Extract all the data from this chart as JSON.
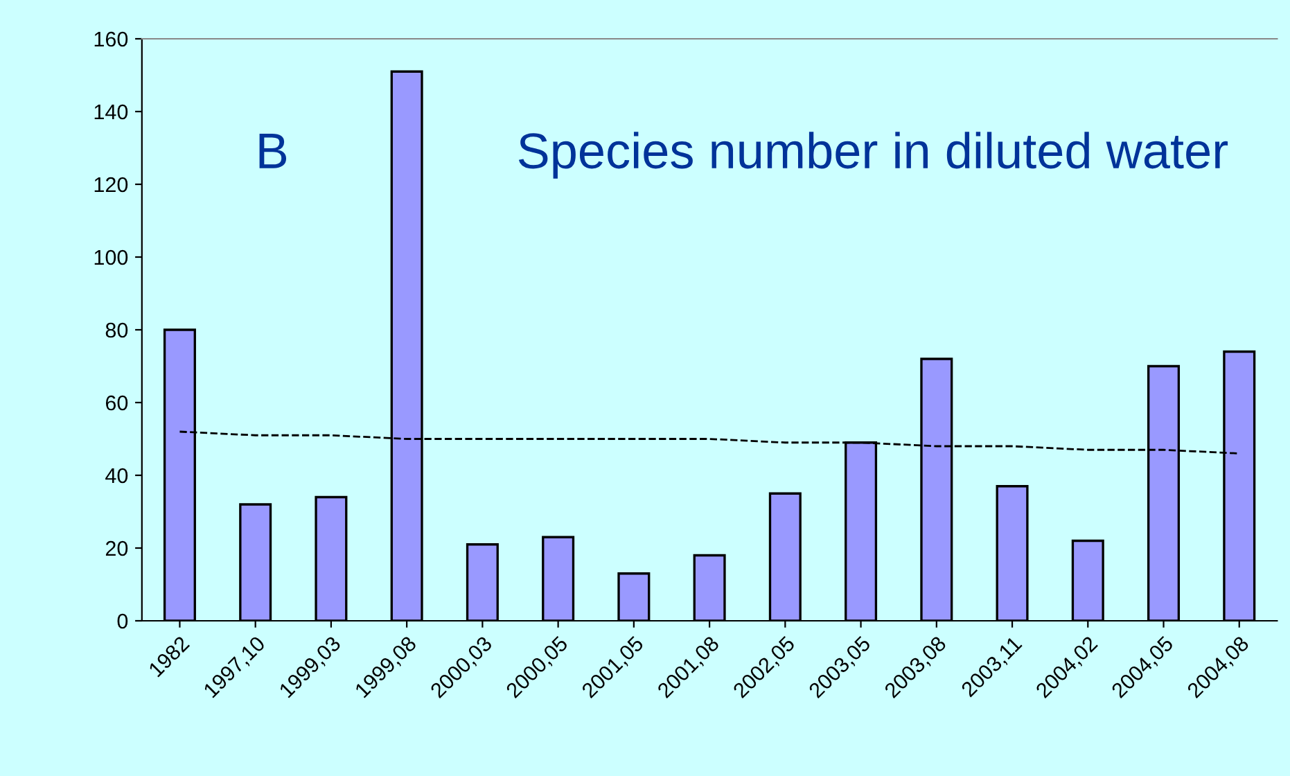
{
  "chart_data": {
    "type": "bar",
    "categories": [
      "1982",
      "1997,10",
      "1999,03",
      "1999,08",
      "2000,03",
      "2000,05",
      "2001,05",
      "2001,08",
      "2002,05",
      "2003,05",
      "2003,08",
      "2003,11",
      "2004,02",
      "2004,05",
      "2004,08"
    ],
    "series": [
      {
        "color": "#9999ff",
        "values": [
          80,
          32,
          34,
          151,
          21,
          23,
          13,
          18,
          35,
          49,
          72,
          37,
          22,
          70,
          74
        ]
      },
      {
        "type": "line",
        "color": "#000000",
        "line_style": "dashed",
        "values": [
          52,
          51,
          51,
          50,
          50,
          50,
          50,
          50,
          49,
          49,
          48,
          48,
          47,
          47,
          46
        ]
      }
    ],
    "annotations": [
      "B",
      "Species number in diluted water"
    ],
    "ylim": [
      0,
      160
    ],
    "yticks": [
      0,
      20,
      40,
      60,
      80,
      100,
      120,
      140,
      160
    ],
    "grid": false,
    "legend": false
  }
}
